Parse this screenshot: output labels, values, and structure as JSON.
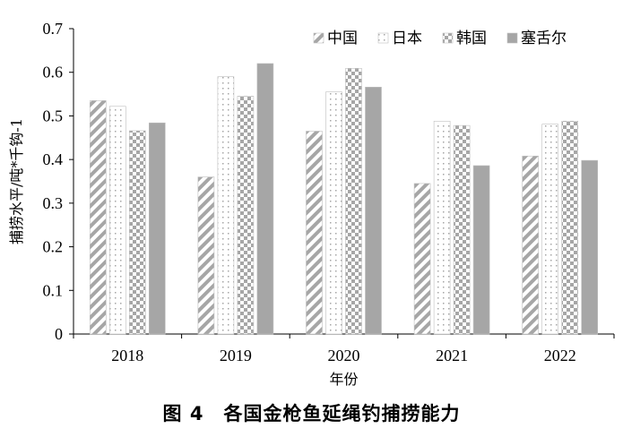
{
  "chart_data": {
    "type": "bar",
    "title": "",
    "xlabel": "年份",
    "ylabel": "捕捞水平/吨*千钩-1",
    "categories": [
      "2018",
      "2019",
      "2020",
      "2021",
      "2022"
    ],
    "ylim": [
      0,
      0.7
    ],
    "yticks": [
      "0",
      "0.1",
      "0.2",
      "0.3",
      "0.4",
      "0.5",
      "0.6",
      "0.7"
    ],
    "grid": false,
    "legend_position": "top-right",
    "series": [
      {
        "name": "中国",
        "pattern": "diagonal-stripes",
        "color": "#a6a6a6",
        "values": [
          0.535,
          0.36,
          0.465,
          0.345,
          0.408
        ]
      },
      {
        "name": "日本",
        "pattern": "dotted",
        "color": "#a6a6a6",
        "values": [
          0.522,
          0.59,
          0.555,
          0.488,
          0.481
        ]
      },
      {
        "name": "韩国",
        "pattern": "checkerboard",
        "color": "#a6a6a6",
        "values": [
          0.466,
          0.545,
          0.609,
          0.478,
          0.488
        ]
      },
      {
        "name": "塞舌尔",
        "pattern": "solid",
        "color": "#a6a6a6",
        "values": [
          0.484,
          0.62,
          0.566,
          0.386,
          0.398
        ]
      }
    ]
  },
  "caption": "图 4　各国金枪鱼延绳钓捕捞能力"
}
